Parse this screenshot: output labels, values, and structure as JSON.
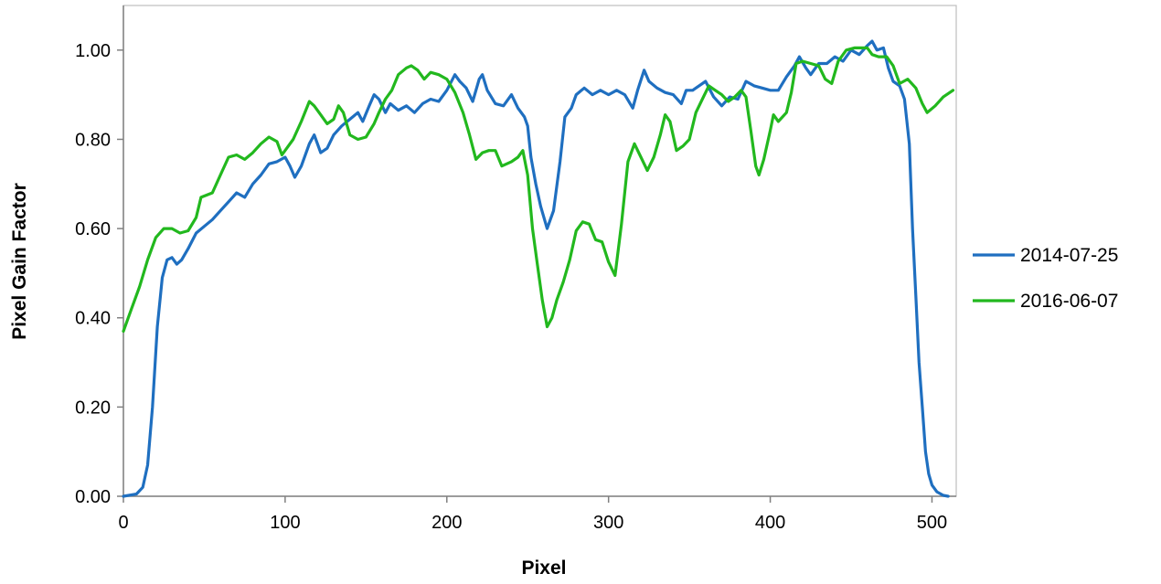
{
  "chart_data": {
    "type": "line",
    "title": "",
    "xlabel": "Pixel",
    "ylabel": "Pixel Gain Factor",
    "xlim": [
      0,
      515
    ],
    "ylim": [
      0,
      1.1
    ],
    "x_ticks": [
      0,
      100,
      200,
      300,
      400,
      500
    ],
    "x_tick_labels": [
      "0",
      "100",
      "200",
      "300",
      "400",
      "500"
    ],
    "y_ticks": [
      0,
      0.2,
      0.4,
      0.6,
      0.8,
      1.0
    ],
    "y_tick_labels": [
      "0.00",
      "0.20",
      "0.40",
      "0.60",
      "0.80",
      "1.00"
    ],
    "grid": false,
    "legend_position": "right",
    "series": [
      {
        "name": "2014-07-25",
        "color": "#1f6fc0",
        "points": [
          [
            0,
            0
          ],
          [
            8,
            0.005
          ],
          [
            12,
            0.02
          ],
          [
            15,
            0.07
          ],
          [
            18,
            0.2
          ],
          [
            21,
            0.38
          ],
          [
            24,
            0.49
          ],
          [
            27,
            0.53
          ],
          [
            30,
            0.535
          ],
          [
            33,
            0.52
          ],
          [
            36,
            0.53
          ],
          [
            40,
            0.555
          ],
          [
            45,
            0.59
          ],
          [
            50,
            0.605
          ],
          [
            55,
            0.62
          ],
          [
            60,
            0.64
          ],
          [
            65,
            0.66
          ],
          [
            70,
            0.68
          ],
          [
            75,
            0.67
          ],
          [
            80,
            0.7
          ],
          [
            85,
            0.72
          ],
          [
            90,
            0.745
          ],
          [
            95,
            0.75
          ],
          [
            100,
            0.76
          ],
          [
            103,
            0.74
          ],
          [
            106,
            0.715
          ],
          [
            110,
            0.74
          ],
          [
            115,
            0.79
          ],
          [
            118,
            0.81
          ],
          [
            122,
            0.77
          ],
          [
            126,
            0.78
          ],
          [
            130,
            0.81
          ],
          [
            135,
            0.83
          ],
          [
            140,
            0.845
          ],
          [
            145,
            0.86
          ],
          [
            148,
            0.84
          ],
          [
            152,
            0.875
          ],
          [
            155,
            0.9
          ],
          [
            158,
            0.89
          ],
          [
            162,
            0.86
          ],
          [
            165,
            0.88
          ],
          [
            170,
            0.865
          ],
          [
            175,
            0.875
          ],
          [
            180,
            0.86
          ],
          [
            185,
            0.88
          ],
          [
            190,
            0.89
          ],
          [
            195,
            0.885
          ],
          [
            200,
            0.91
          ],
          [
            205,
            0.945
          ],
          [
            208,
            0.93
          ],
          [
            212,
            0.915
          ],
          [
            216,
            0.885
          ],
          [
            220,
            0.935
          ],
          [
            222,
            0.945
          ],
          [
            225,
            0.91
          ],
          [
            230,
            0.88
          ],
          [
            235,
            0.875
          ],
          [
            240,
            0.9
          ],
          [
            244,
            0.87
          ],
          [
            248,
            0.85
          ],
          [
            250,
            0.83
          ],
          [
            252,
            0.76
          ],
          [
            255,
            0.7
          ],
          [
            258,
            0.65
          ],
          [
            262,
            0.6
          ],
          [
            266,
            0.64
          ],
          [
            270,
            0.75
          ],
          [
            273,
            0.85
          ],
          [
            277,
            0.87
          ],
          [
            280,
            0.9
          ],
          [
            285,
            0.915
          ],
          [
            290,
            0.9
          ],
          [
            295,
            0.91
          ],
          [
            300,
            0.9
          ],
          [
            305,
            0.91
          ],
          [
            310,
            0.9
          ],
          [
            315,
            0.87
          ],
          [
            318,
            0.91
          ],
          [
            322,
            0.955
          ],
          [
            325,
            0.93
          ],
          [
            330,
            0.915
          ],
          [
            335,
            0.905
          ],
          [
            340,
            0.9
          ],
          [
            345,
            0.88
          ],
          [
            348,
            0.91
          ],
          [
            352,
            0.91
          ],
          [
            356,
            0.92
          ],
          [
            360,
            0.93
          ],
          [
            365,
            0.895
          ],
          [
            370,
            0.875
          ],
          [
            375,
            0.895
          ],
          [
            380,
            0.89
          ],
          [
            385,
            0.93
          ],
          [
            390,
            0.92
          ],
          [
            395,
            0.915
          ],
          [
            400,
            0.91
          ],
          [
            405,
            0.91
          ],
          [
            410,
            0.94
          ],
          [
            415,
            0.965
          ],
          [
            418,
            0.985
          ],
          [
            422,
            0.96
          ],
          [
            425,
            0.945
          ],
          [
            430,
            0.97
          ],
          [
            435,
            0.97
          ],
          [
            440,
            0.985
          ],
          [
            445,
            0.975
          ],
          [
            450,
            1.0
          ],
          [
            455,
            0.99
          ],
          [
            460,
            1.01
          ],
          [
            463,
            1.02
          ],
          [
            466,
            1.0
          ],
          [
            470,
            1.005
          ],
          [
            473,
            0.96
          ],
          [
            476,
            0.93
          ],
          [
            480,
            0.92
          ],
          [
            483,
            0.89
          ],
          [
            486,
            0.79
          ],
          [
            488,
            0.6
          ],
          [
            490,
            0.45
          ],
          [
            492,
            0.3
          ],
          [
            494,
            0.2
          ],
          [
            496,
            0.1
          ],
          [
            498,
            0.05
          ],
          [
            500,
            0.025
          ],
          [
            503,
            0.01
          ],
          [
            507,
            0.002
          ],
          [
            510,
            0
          ]
        ]
      },
      {
        "name": "2016-06-07",
        "color": "#22b81e",
        "points": [
          [
            0,
            0.37
          ],
          [
            5,
            0.42
          ],
          [
            10,
            0.47
          ],
          [
            15,
            0.53
          ],
          [
            20,
            0.58
          ],
          [
            25,
            0.6
          ],
          [
            30,
            0.6
          ],
          [
            35,
            0.59
          ],
          [
            40,
            0.595
          ],
          [
            45,
            0.625
          ],
          [
            48,
            0.67
          ],
          [
            55,
            0.68
          ],
          [
            60,
            0.72
          ],
          [
            65,
            0.76
          ],
          [
            70,
            0.765
          ],
          [
            75,
            0.755
          ],
          [
            80,
            0.77
          ],
          [
            85,
            0.79
          ],
          [
            90,
            0.805
          ],
          [
            95,
            0.795
          ],
          [
            98,
            0.765
          ],
          [
            102,
            0.785
          ],
          [
            105,
            0.8
          ],
          [
            110,
            0.84
          ],
          [
            115,
            0.885
          ],
          [
            118,
            0.875
          ],
          [
            122,
            0.855
          ],
          [
            126,
            0.835
          ],
          [
            130,
            0.845
          ],
          [
            133,
            0.875
          ],
          [
            136,
            0.86
          ],
          [
            140,
            0.81
          ],
          [
            145,
            0.8
          ],
          [
            150,
            0.805
          ],
          [
            155,
            0.835
          ],
          [
            158,
            0.86
          ],
          [
            162,
            0.89
          ],
          [
            166,
            0.91
          ],
          [
            170,
            0.945
          ],
          [
            175,
            0.96
          ],
          [
            178,
            0.965
          ],
          [
            182,
            0.955
          ],
          [
            186,
            0.935
          ],
          [
            190,
            0.95
          ],
          [
            195,
            0.945
          ],
          [
            200,
            0.935
          ],
          [
            205,
            0.905
          ],
          [
            210,
            0.86
          ],
          [
            214,
            0.81
          ],
          [
            218,
            0.755
          ],
          [
            222,
            0.77
          ],
          [
            226,
            0.775
          ],
          [
            230,
            0.775
          ],
          [
            234,
            0.74
          ],
          [
            240,
            0.75
          ],
          [
            244,
            0.76
          ],
          [
            247,
            0.775
          ],
          [
            250,
            0.72
          ],
          [
            253,
            0.6
          ],
          [
            256,
            0.52
          ],
          [
            259,
            0.44
          ],
          [
            262,
            0.38
          ],
          [
            265,
            0.4
          ],
          [
            268,
            0.44
          ],
          [
            272,
            0.48
          ],
          [
            276,
            0.53
          ],
          [
            280,
            0.595
          ],
          [
            284,
            0.615
          ],
          [
            288,
            0.61
          ],
          [
            292,
            0.575
          ],
          [
            296,
            0.57
          ],
          [
            300,
            0.525
          ],
          [
            304,
            0.495
          ],
          [
            308,
            0.61
          ],
          [
            312,
            0.75
          ],
          [
            316,
            0.79
          ],
          [
            320,
            0.76
          ],
          [
            324,
            0.73
          ],
          [
            328,
            0.76
          ],
          [
            332,
            0.81
          ],
          [
            335,
            0.855
          ],
          [
            338,
            0.84
          ],
          [
            342,
            0.775
          ],
          [
            346,
            0.785
          ],
          [
            350,
            0.8
          ],
          [
            354,
            0.86
          ],
          [
            358,
            0.89
          ],
          [
            362,
            0.92
          ],
          [
            366,
            0.91
          ],
          [
            370,
            0.9
          ],
          [
            374,
            0.885
          ],
          [
            378,
            0.895
          ],
          [
            382,
            0.91
          ],
          [
            385,
            0.895
          ],
          [
            388,
            0.82
          ],
          [
            391,
            0.74
          ],
          [
            393,
            0.72
          ],
          [
            396,
            0.755
          ],
          [
            400,
            0.82
          ],
          [
            402,
            0.855
          ],
          [
            405,
            0.84
          ],
          [
            410,
            0.86
          ],
          [
            413,
            0.905
          ],
          [
            416,
            0.97
          ],
          [
            420,
            0.975
          ],
          [
            425,
            0.97
          ],
          [
            430,
            0.965
          ],
          [
            434,
            0.935
          ],
          [
            438,
            0.925
          ],
          [
            442,
            0.975
          ],
          [
            447,
            1.0
          ],
          [
            452,
            1.005
          ],
          [
            456,
            1.005
          ],
          [
            460,
            1.005
          ],
          [
            463,
            0.99
          ],
          [
            467,
            0.985
          ],
          [
            472,
            0.985
          ],
          [
            476,
            0.965
          ],
          [
            480,
            0.925
          ],
          [
            485,
            0.935
          ],
          [
            490,
            0.915
          ],
          [
            494,
            0.88
          ],
          [
            497,
            0.86
          ],
          [
            502,
            0.875
          ],
          [
            507,
            0.895
          ],
          [
            513,
            0.91
          ]
        ]
      }
    ]
  }
}
